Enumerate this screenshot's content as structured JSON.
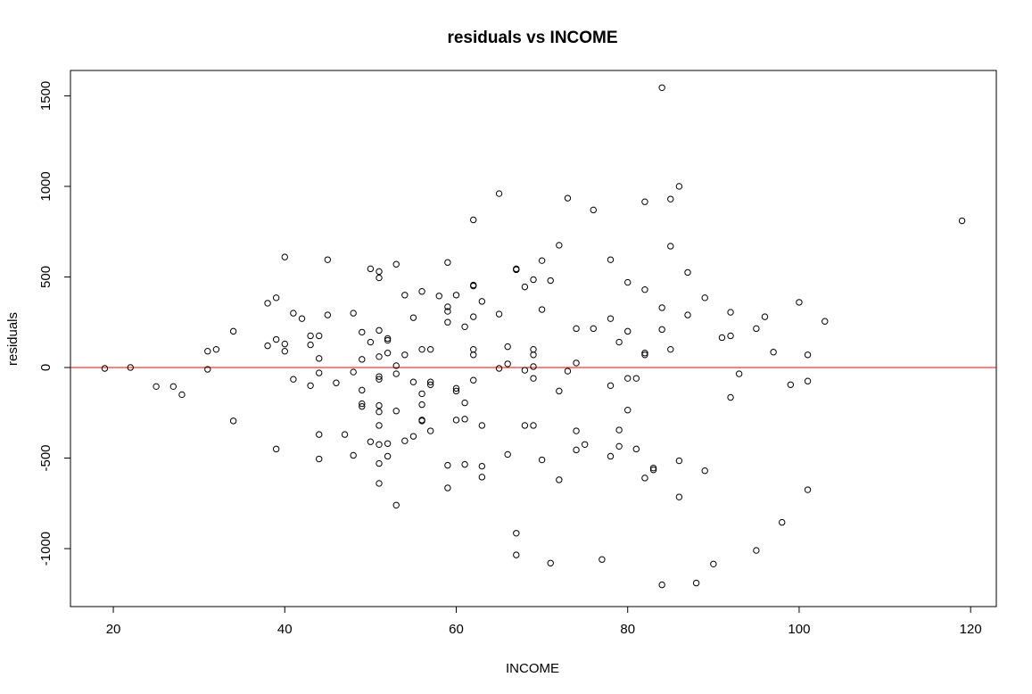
{
  "chart_data": {
    "type": "scatter",
    "title": "residuals vs INCOME",
    "xlabel": "INCOME",
    "ylabel": "residuals",
    "xlim": [
      15,
      123
    ],
    "ylim": [
      -1320,
      1640
    ],
    "xticks": [
      20,
      40,
      60,
      80,
      100,
      120
    ],
    "yticks": [
      -1000,
      -500,
      0,
      500,
      1000,
      1500
    ],
    "grid": false,
    "reference_line": {
      "y": 0,
      "color": "#ff0000"
    },
    "point_color": "#000000",
    "points": [
      [
        19,
        -5
      ],
      [
        22,
        0
      ],
      [
        25,
        -105
      ],
      [
        27,
        -105
      ],
      [
        28,
        -150
      ],
      [
        31,
        90
      ],
      [
        31,
        -10
      ],
      [
        32,
        100
      ],
      [
        34,
        200
      ],
      [
        34,
        -295
      ],
      [
        38,
        355
      ],
      [
        38,
        120
      ],
      [
        39,
        385
      ],
      [
        39,
        155
      ],
      [
        39,
        -450
      ],
      [
        40,
        610
      ],
      [
        40,
        130
      ],
      [
        40,
        90
      ],
      [
        41,
        300
      ],
      [
        41,
        -65
      ],
      [
        42,
        270
      ],
      [
        43,
        175
      ],
      [
        43,
        125
      ],
      [
        43,
        -100
      ],
      [
        44,
        175
      ],
      [
        44,
        50
      ],
      [
        44,
        -30
      ],
      [
        44,
        -370
      ],
      [
        44,
        -505
      ],
      [
        45,
        595
      ],
      [
        45,
        290
      ],
      [
        46,
        -85
      ],
      [
        47,
        -370
      ],
      [
        48,
        300
      ],
      [
        48,
        -25
      ],
      [
        48,
        -485
      ],
      [
        49,
        195
      ],
      [
        49,
        45
      ],
      [
        49,
        -125
      ],
      [
        49,
        -200
      ],
      [
        49,
        -215
      ],
      [
        50,
        545
      ],
      [
        50,
        140
      ],
      [
        50,
        -410
      ],
      [
        51,
        530
      ],
      [
        51,
        495
      ],
      [
        51,
        205
      ],
      [
        51,
        60
      ],
      [
        51,
        -50
      ],
      [
        51,
        -65
      ],
      [
        51,
        -210
      ],
      [
        51,
        -245
      ],
      [
        51,
        -320
      ],
      [
        51,
        -425
      ],
      [
        51,
        -530
      ],
      [
        51,
        -640
      ],
      [
        52,
        160
      ],
      [
        52,
        150
      ],
      [
        52,
        80
      ],
      [
        52,
        -420
      ],
      [
        52,
        -490
      ],
      [
        53,
        570
      ],
      [
        53,
        10
      ],
      [
        53,
        -35
      ],
      [
        53,
        -240
      ],
      [
        53,
        -760
      ],
      [
        54,
        400
      ],
      [
        54,
        70
      ],
      [
        54,
        -405
      ],
      [
        55,
        275
      ],
      [
        55,
        -80
      ],
      [
        55,
        -380
      ],
      [
        56,
        420
      ],
      [
        56,
        100
      ],
      [
        56,
        -145
      ],
      [
        56,
        -205
      ],
      [
        56,
        -290
      ],
      [
        56,
        -295
      ],
      [
        57,
        100
      ],
      [
        57,
        -80
      ],
      [
        57,
        -95
      ],
      [
        57,
        -350
      ],
      [
        58,
        395
      ],
      [
        59,
        580
      ],
      [
        59,
        335
      ],
      [
        59,
        310
      ],
      [
        59,
        250
      ],
      [
        59,
        -540
      ],
      [
        59,
        -665
      ],
      [
        60,
        400
      ],
      [
        60,
        -115
      ],
      [
        60,
        -130
      ],
      [
        60,
        -290
      ],
      [
        61,
        225
      ],
      [
        61,
        -195
      ],
      [
        61,
        -285
      ],
      [
        61,
        -535
      ],
      [
        62,
        815
      ],
      [
        62,
        455
      ],
      [
        62,
        450
      ],
      [
        62,
        280
      ],
      [
        62,
        100
      ],
      [
        62,
        70
      ],
      [
        62,
        -70
      ],
      [
        63,
        365
      ],
      [
        63,
        -320
      ],
      [
        63,
        -545
      ],
      [
        63,
        -605
      ],
      [
        65,
        960
      ],
      [
        65,
        295
      ],
      [
        65,
        -5
      ],
      [
        66,
        115
      ],
      [
        66,
        20
      ],
      [
        66,
        -480
      ],
      [
        67,
        545
      ],
      [
        67,
        540
      ],
      [
        67,
        -915
      ],
      [
        67,
        -1035
      ],
      [
        68,
        445
      ],
      [
        68,
        -15
      ],
      [
        68,
        -320
      ],
      [
        69,
        485
      ],
      [
        69,
        100
      ],
      [
        69,
        70
      ],
      [
        69,
        5
      ],
      [
        69,
        -60
      ],
      [
        69,
        -320
      ],
      [
        70,
        590
      ],
      [
        70,
        320
      ],
      [
        70,
        -510
      ],
      [
        71,
        480
      ],
      [
        71,
        -1080
      ],
      [
        72,
        675
      ],
      [
        72,
        -130
      ],
      [
        72,
        -620
      ],
      [
        73,
        935
      ],
      [
        73,
        -20
      ],
      [
        74,
        215
      ],
      [
        74,
        25
      ],
      [
        74,
        -350
      ],
      [
        74,
        -455
      ],
      [
        75,
        -425
      ],
      [
        76,
        870
      ],
      [
        76,
        215
      ],
      [
        77,
        -1060
      ],
      [
        78,
        595
      ],
      [
        78,
        270
      ],
      [
        78,
        -100
      ],
      [
        78,
        -490
      ],
      [
        79,
        140
      ],
      [
        79,
        -345
      ],
      [
        79,
        -435
      ],
      [
        80,
        470
      ],
      [
        80,
        200
      ],
      [
        80,
        -60
      ],
      [
        80,
        -235
      ],
      [
        81,
        -60
      ],
      [
        81,
        -450
      ],
      [
        82,
        915
      ],
      [
        82,
        430
      ],
      [
        82,
        80
      ],
      [
        82,
        70
      ],
      [
        82,
        -610
      ],
      [
        83,
        -555
      ],
      [
        83,
        -565
      ],
      [
        84,
        1545
      ],
      [
        84,
        330
      ],
      [
        84,
        210
      ],
      [
        84,
        -1200
      ],
      [
        85,
        930
      ],
      [
        85,
        670
      ],
      [
        85,
        100
      ],
      [
        86,
        1000
      ],
      [
        86,
        -515
      ],
      [
        86,
        -715
      ],
      [
        87,
        525
      ],
      [
        87,
        290
      ],
      [
        88,
        -1190
      ],
      [
        89,
        385
      ],
      [
        89,
        -570
      ],
      [
        90,
        -1085
      ],
      [
        91,
        165
      ],
      [
        92,
        305
      ],
      [
        92,
        175
      ],
      [
        92,
        -165
      ],
      [
        93,
        -35
      ],
      [
        95,
        215
      ],
      [
        95,
        -1010
      ],
      [
        96,
        280
      ],
      [
        97,
        85
      ],
      [
        98,
        -855
      ],
      [
        99,
        -95
      ],
      [
        100,
        360
      ],
      [
        101,
        70
      ],
      [
        101,
        -75
      ],
      [
        101,
        -675
      ],
      [
        103,
        255
      ],
      [
        119,
        810
      ]
    ]
  }
}
